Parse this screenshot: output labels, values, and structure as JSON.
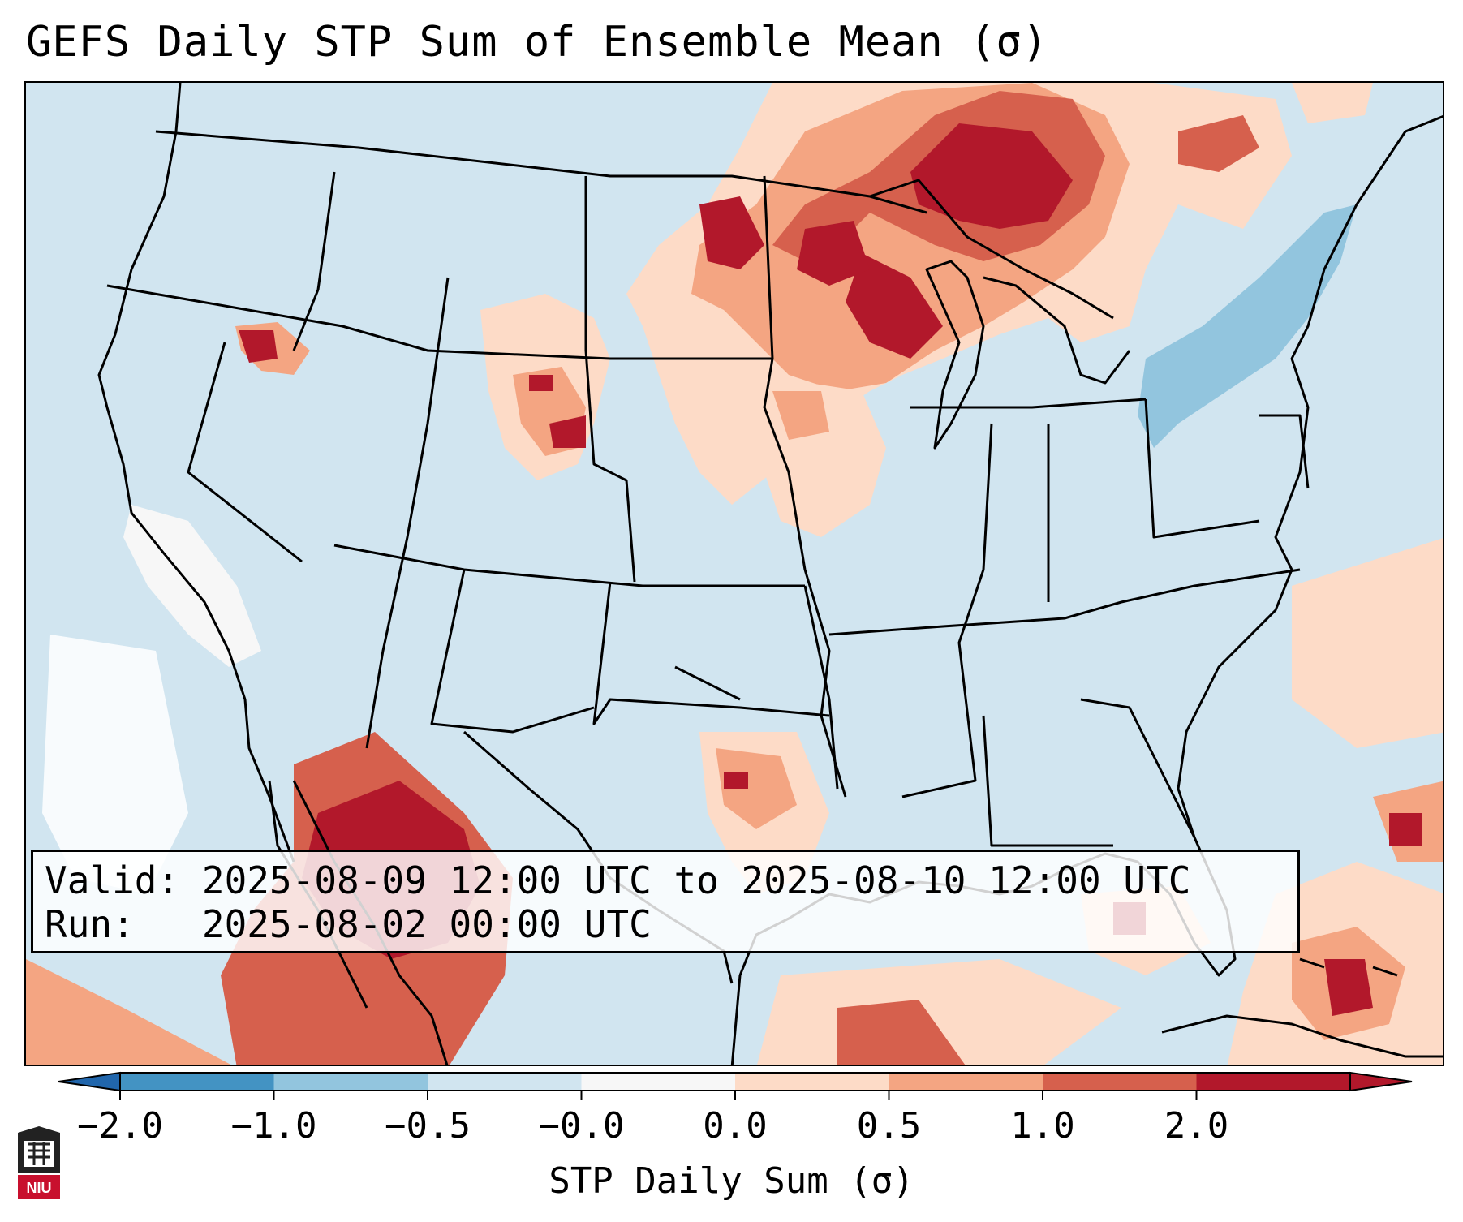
{
  "title": "GEFS Daily STP Sum of Ensemble Mean (σ)",
  "info": {
    "valid_label": "Valid:",
    "valid_value": "2025-08-09 12:00 UTC to 2025-08-10 12:00 UTC",
    "run_label": "Run:",
    "run_value": "2025-08-02 00:00 UTC"
  },
  "colorbar": {
    "label": "STP Daily Sum (σ)",
    "ticks": [
      "−2.0",
      "−1.0",
      "−0.5",
      "−0.0",
      "0.0",
      "0.5",
      "1.0",
      "2.0"
    ],
    "colors": [
      "#4393c3",
      "#92c5de",
      "#d1e5f0",
      "#f7f7f7",
      "#fddbc7",
      "#f4a582",
      "#d6604d",
      "#b2182b"
    ]
  },
  "legend_colors": {
    "background": "#d1e5f0",
    "white": "#ffffff",
    "light_red": "#fddbc7",
    "mid_red": "#f4a582",
    "red": "#d6604d",
    "dark_red": "#b2182b",
    "light_blue": "#92c5de"
  },
  "logo": {
    "text": "NIU",
    "color": "#c8102e"
  }
}
